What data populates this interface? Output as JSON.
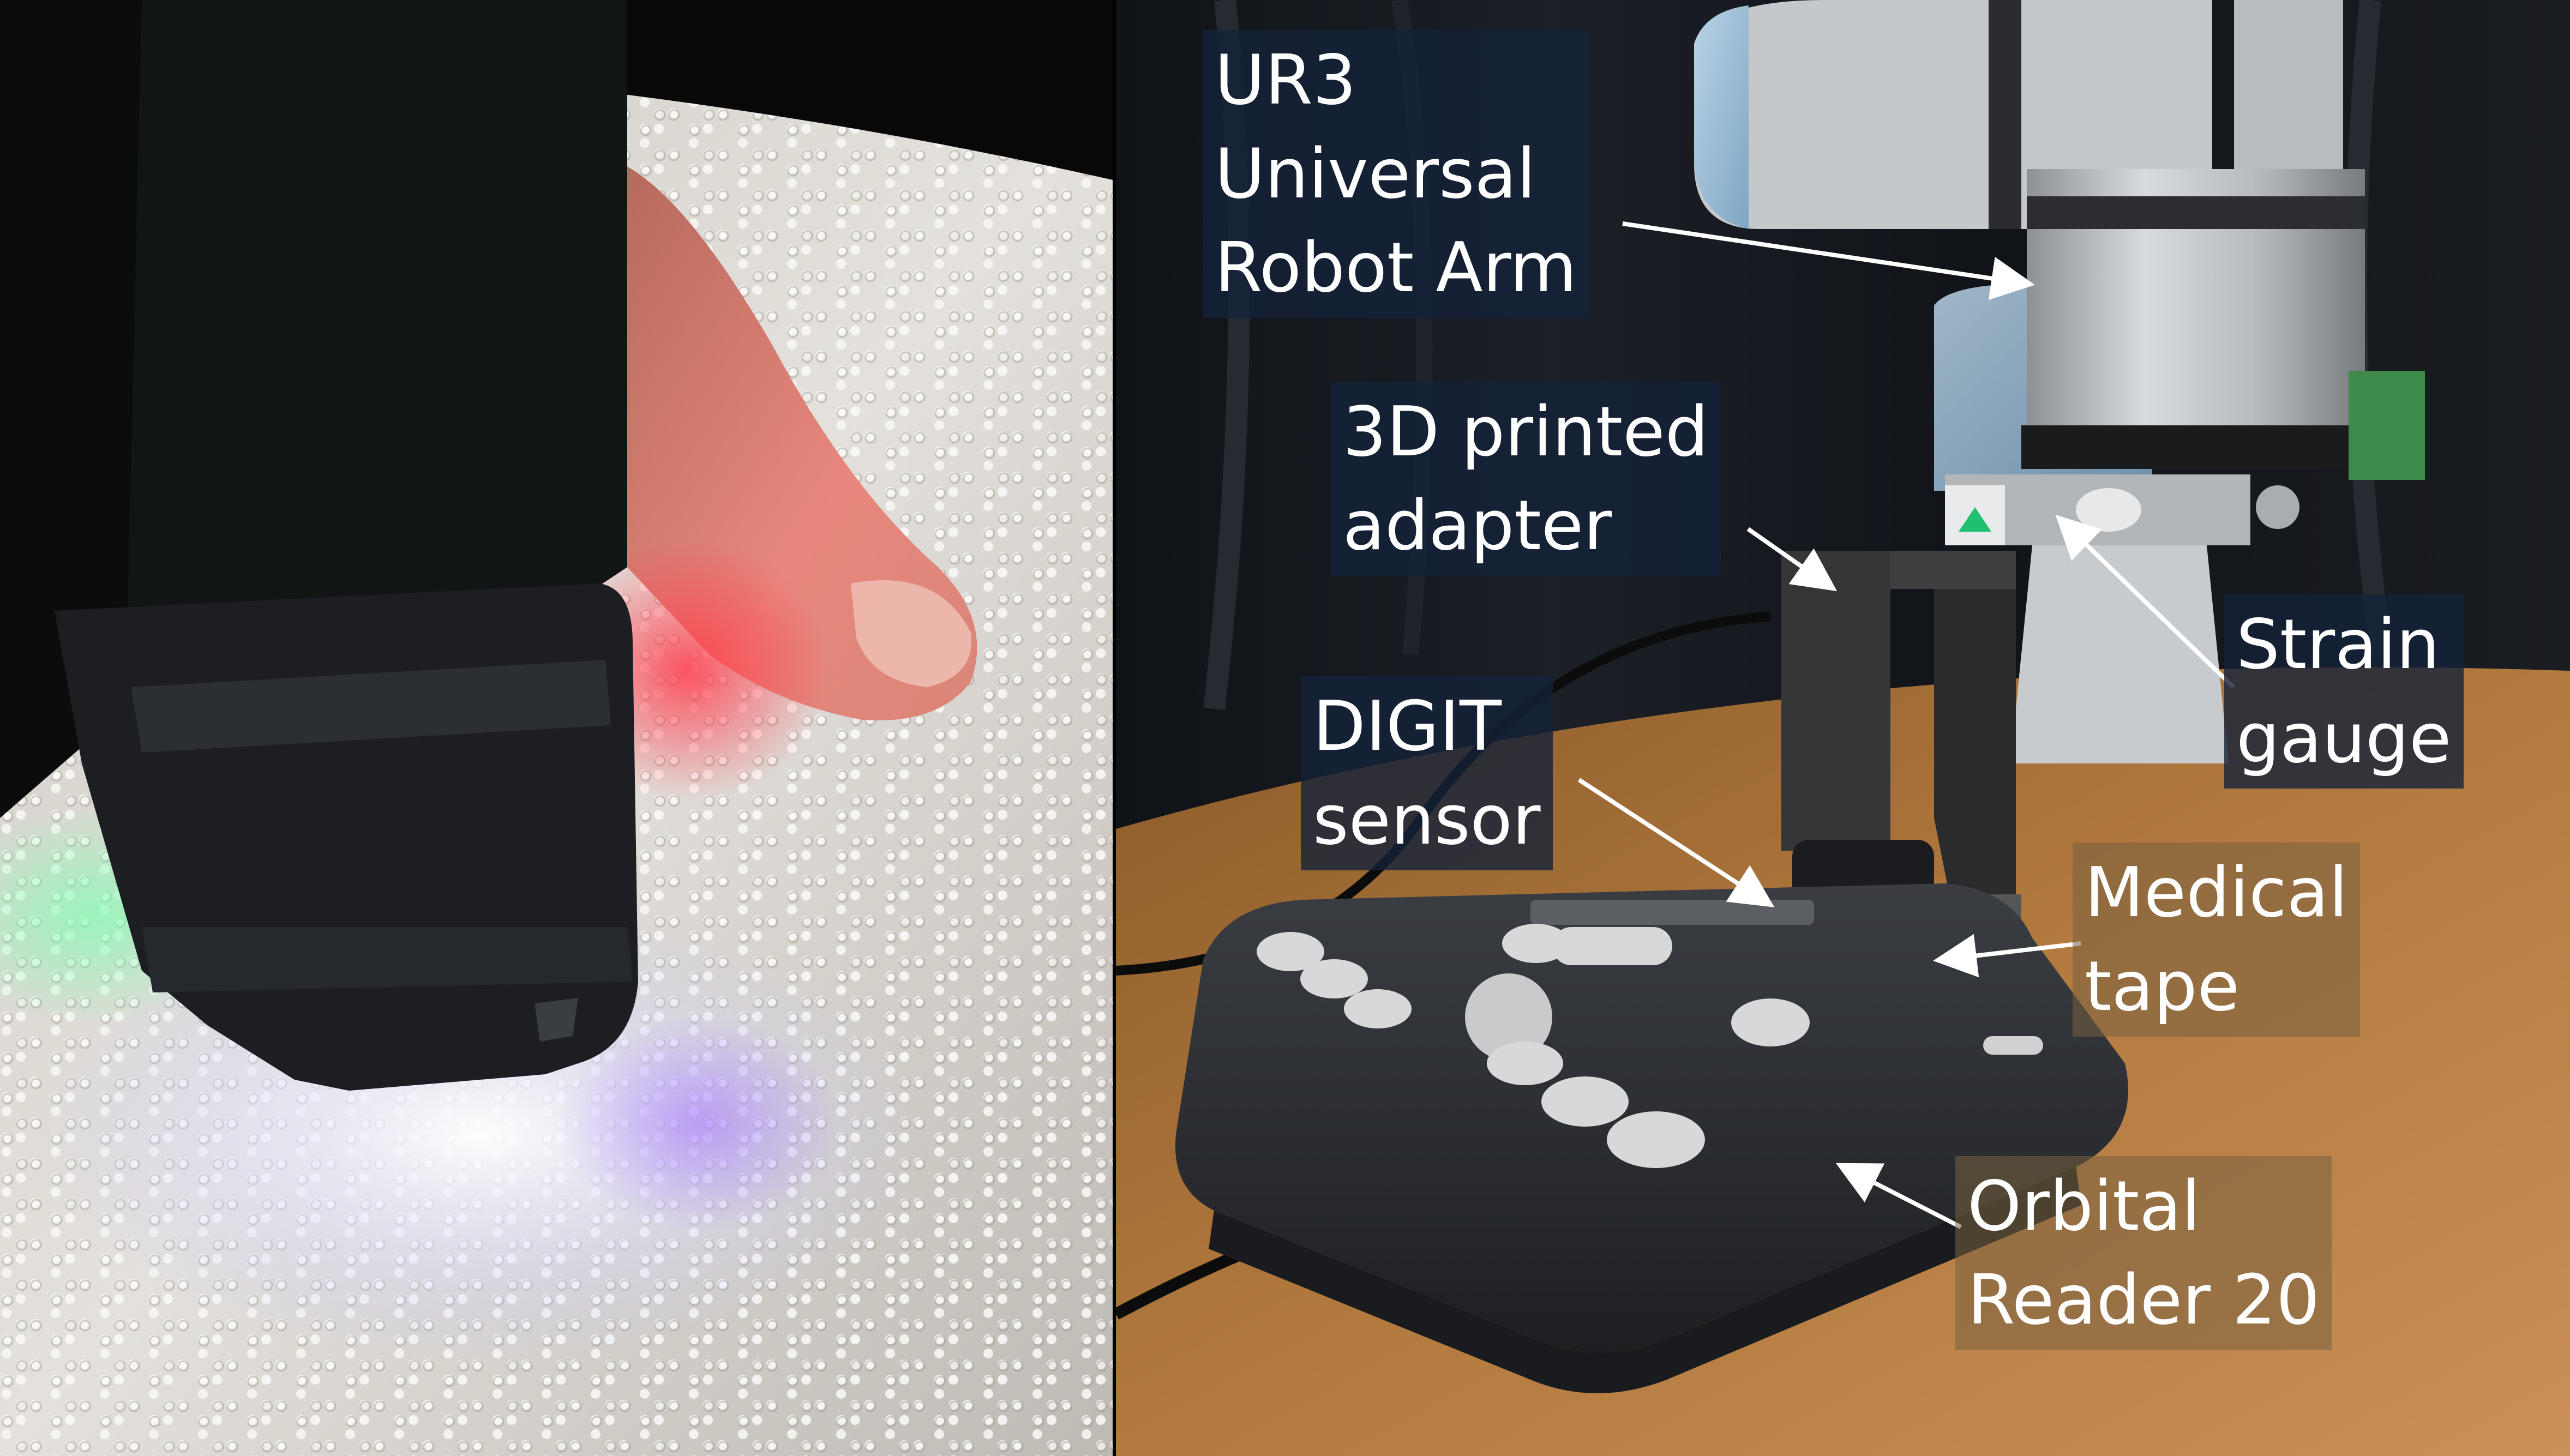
{
  "left_photo": {
    "subject": "DIGIT tactile sensor pressed on embossed braille paper next to a fingertip"
  },
  "right_photo": {
    "subject": "UR3 robot arm with DIGIT sensor reading an Orbital Reader 20 braille display"
  },
  "labels": {
    "ur3": "UR3\nUniversal\nRobot Arm",
    "adapter": "3D printed\nadapter",
    "strain_gauge": "Strain\ngauge",
    "digit": "DIGIT\nsensor",
    "medical_tape": "Medical\ntape",
    "orbital": "Orbital\nReader 20"
  },
  "colors": {
    "arrow": "#ffffff",
    "label_dark_bg": "#142238",
    "label_warm_bg": "#786040",
    "table": "#a8733a"
  }
}
